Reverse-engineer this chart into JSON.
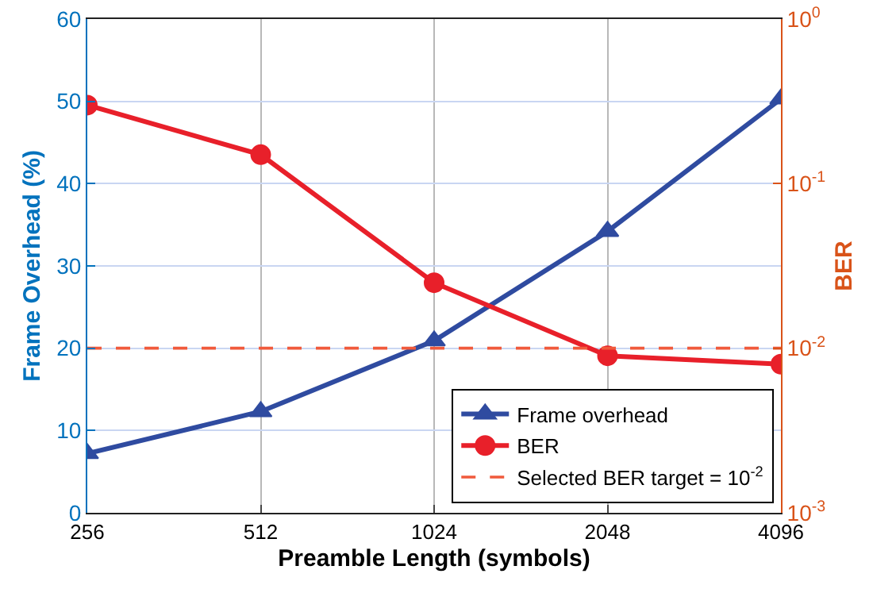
{
  "chart_data": {
    "type": "line",
    "xlabel": "Preamble Length (symbols)",
    "ylabel": "Frame Overhead (%)",
    "y2label": "BER",
    "categories": [
      "256",
      "512",
      "1024",
      "2048",
      "4096"
    ],
    "series": [
      {
        "name": "Frame overhead",
        "color": "#2f4ba0",
        "values": [
          7.2,
          12.3,
          20.9,
          34.2,
          50.3
        ],
        "marker": "triangle"
      },
      {
        "name": "BER",
        "color": "#e8202a",
        "values": [
          0.3,
          0.15,
          0.025,
          0.009,
          0.008
        ],
        "marker": "circle",
        "axis": "y2"
      }
    ],
    "ylim": [
      0,
      60
    ],
    "yticks": [
      0,
      10,
      20,
      30,
      40,
      50,
      60
    ],
    "y2lim": [
      0.001,
      1
    ],
    "y2ticks": [
      {
        "value": 0.001,
        "label": "10$^{-3}$"
      },
      {
        "value": 0.01,
        "label": "10$^{-2}$"
      },
      {
        "value": 0.1,
        "label": "10$^{-1}$"
      },
      {
        "value": 1,
        "label": "10$^{0}$"
      }
    ],
    "log": "y2",
    "grid": true,
    "legend": "bottom right",
    "line_style": "solid",
    "ref_lines": [
      {
        "axis": "y2",
        "value": 0.01,
        "label": "Selected BER target = 10$^{-2}$",
        "color": "#f05a3c",
        "line_style": "dashed"
      }
    ]
  }
}
